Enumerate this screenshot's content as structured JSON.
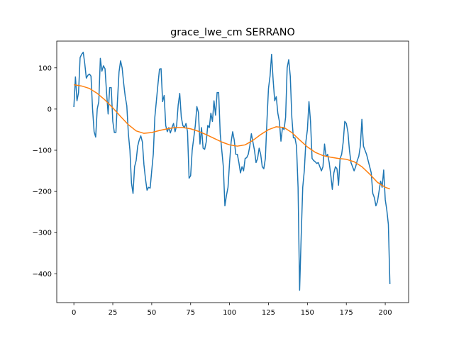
{
  "chart_data": {
    "type": "line",
    "title": "grace_lwe_cm SERRANO",
    "xlabel": "",
    "ylabel": "",
    "xlim": [
      -11,
      215
    ],
    "ylim": [
      -470,
      165
    ],
    "xticks": [
      0,
      25,
      50,
      75,
      100,
      125,
      150,
      175,
      200
    ],
    "yticks": [
      100,
      0,
      -100,
      -200,
      -300,
      -400
    ],
    "grid": false,
    "legend": "none",
    "series": [
      {
        "color": "#1f77b4",
        "points": [
          [
            0,
            5
          ],
          [
            1,
            78
          ],
          [
            2,
            20
          ],
          [
            3,
            40
          ],
          [
            4,
            125
          ],
          [
            5,
            133
          ],
          [
            6,
            138
          ],
          [
            7,
            110
          ],
          [
            8,
            75
          ],
          [
            9,
            82
          ],
          [
            10,
            85
          ],
          [
            11,
            80
          ],
          [
            12,
            0
          ],
          [
            13,
            -55
          ],
          [
            14,
            -68
          ],
          [
            15,
            0
          ],
          [
            16,
            18
          ],
          [
            17,
            123
          ],
          [
            18,
            92
          ],
          [
            19,
            105
          ],
          [
            20,
            98
          ],
          [
            21,
            40
          ],
          [
            22,
            -12
          ],
          [
            23,
            52
          ],
          [
            24,
            52
          ],
          [
            25,
            -30
          ],
          [
            26,
            -57
          ],
          [
            27,
            -57
          ],
          [
            28,
            20
          ],
          [
            29,
            90
          ],
          [
            30,
            117
          ],
          [
            31,
            100
          ],
          [
            32,
            62
          ],
          [
            33,
            30
          ],
          [
            34,
            8
          ],
          [
            35,
            -60
          ],
          [
            36,
            -100
          ],
          [
            37,
            -180
          ],
          [
            38,
            -205
          ],
          [
            39,
            -140
          ],
          [
            40,
            -125
          ],
          [
            41,
            -90
          ],
          [
            42,
            -75
          ],
          [
            43,
            -65
          ],
          [
            44,
            -80
          ],
          [
            45,
            -135
          ],
          [
            46,
            -170
          ],
          [
            47,
            -197
          ],
          [
            48,
            -190
          ],
          [
            49,
            -192
          ],
          [
            50,
            -150
          ],
          [
            51,
            -110
          ],
          [
            52,
            -20
          ],
          [
            53,
            20
          ],
          [
            54,
            60
          ],
          [
            55,
            97
          ],
          [
            56,
            98
          ],
          [
            57,
            18
          ],
          [
            58,
            33
          ],
          [
            59,
            -40
          ],
          [
            60,
            -55
          ],
          [
            61,
            -45
          ],
          [
            62,
            -58
          ],
          [
            63,
            -45
          ],
          [
            64,
            -35
          ],
          [
            65,
            -55
          ],
          [
            66,
            -40
          ],
          [
            67,
            10
          ],
          [
            68,
            38
          ],
          [
            69,
            -20
          ],
          [
            70,
            -40
          ],
          [
            71,
            -45
          ],
          [
            72,
            -35
          ],
          [
            73,
            -55
          ],
          [
            74,
            -168
          ],
          [
            75,
            -162
          ],
          [
            76,
            -100
          ],
          [
            77,
            -70
          ],
          [
            78,
            -40
          ],
          [
            79,
            6
          ],
          [
            80,
            -8
          ],
          [
            81,
            -85
          ],
          [
            82,
            -45
          ],
          [
            83,
            -95
          ],
          [
            84,
            -98
          ],
          [
            85,
            -80
          ],
          [
            86,
            -40
          ],
          [
            87,
            -45
          ],
          [
            88,
            -10
          ],
          [
            89,
            -30
          ],
          [
            90,
            20
          ],
          [
            91,
            -15
          ],
          [
            92,
            40
          ],
          [
            93,
            40
          ],
          [
            94,
            -60
          ],
          [
            95,
            -100
          ],
          [
            96,
            -140
          ],
          [
            97,
            -235
          ],
          [
            98,
            -210
          ],
          [
            99,
            -190
          ],
          [
            100,
            -130
          ],
          [
            101,
            -80
          ],
          [
            102,
            -55
          ],
          [
            103,
            -75
          ],
          [
            104,
            -110
          ],
          [
            105,
            -110
          ],
          [
            106,
            -130
          ],
          [
            107,
            -155
          ],
          [
            108,
            -140
          ],
          [
            109,
            -150
          ],
          [
            110,
            -120
          ],
          [
            111,
            -118
          ],
          [
            112,
            -110
          ],
          [
            113,
            -90
          ],
          [
            114,
            -60
          ],
          [
            115,
            -80
          ],
          [
            116,
            -100
          ],
          [
            117,
            -130
          ],
          [
            118,
            -120
          ],
          [
            119,
            -95
          ],
          [
            120,
            -110
          ],
          [
            121,
            -140
          ],
          [
            122,
            -145
          ],
          [
            123,
            -120
          ],
          [
            124,
            -30
          ],
          [
            125,
            50
          ],
          [
            126,
            80
          ],
          [
            127,
            133
          ],
          [
            128,
            70
          ],
          [
            129,
            20
          ],
          [
            130,
            30
          ],
          [
            131,
            -10
          ],
          [
            132,
            -30
          ],
          [
            133,
            -78
          ],
          [
            134,
            -45
          ],
          [
            135,
            -50
          ],
          [
            136,
            -20
          ],
          [
            137,
            100
          ],
          [
            138,
            120
          ],
          [
            139,
            80
          ],
          [
            140,
            -20
          ],
          [
            141,
            -70
          ],
          [
            142,
            -70
          ],
          [
            143,
            -90
          ],
          [
            144,
            -190
          ],
          [
            145,
            -440
          ],
          [
            146,
            -310
          ],
          [
            147,
            -190
          ],
          [
            148,
            -150
          ],
          [
            149,
            -80
          ],
          [
            150,
            -50
          ],
          [
            151,
            18
          ],
          [
            152,
            -30
          ],
          [
            153,
            -120
          ],
          [
            154,
            -125
          ],
          [
            155,
            -128
          ],
          [
            156,
            -132
          ],
          [
            157,
            -130
          ],
          [
            158,
            -140
          ],
          [
            159,
            -150
          ],
          [
            160,
            -140
          ],
          [
            161,
            -85
          ],
          [
            162,
            -115
          ],
          [
            163,
            -110
          ],
          [
            164,
            -130
          ],
          [
            165,
            -160
          ],
          [
            166,
            -195
          ],
          [
            167,
            -155
          ],
          [
            168,
            -140
          ],
          [
            169,
            -145
          ],
          [
            170,
            -185
          ],
          [
            171,
            -120
          ],
          [
            172,
            -110
          ],
          [
            173,
            -80
          ],
          [
            174,
            -30
          ],
          [
            175,
            -35
          ],
          [
            176,
            -55
          ],
          [
            177,
            -100
          ],
          [
            178,
            -130
          ],
          [
            179,
            -140
          ],
          [
            180,
            -150
          ],
          [
            181,
            -140
          ],
          [
            182,
            -125
          ],
          [
            183,
            -115
          ],
          [
            184,
            -90
          ],
          [
            185,
            -25
          ],
          [
            186,
            -90
          ],
          [
            187,
            -100
          ],
          [
            188,
            -110
          ],
          [
            189,
            -125
          ],
          [
            190,
            -140
          ],
          [
            191,
            -155
          ],
          [
            192,
            -205
          ],
          [
            193,
            -215
          ],
          [
            194,
            -235
          ],
          [
            195,
            -225
          ],
          [
            196,
            -200
          ],
          [
            197,
            -175
          ],
          [
            198,
            -190
          ],
          [
            199,
            -148
          ],
          [
            200,
            -220
          ],
          [
            201,
            -245
          ],
          [
            202,
            -280
          ],
          [
            203,
            -425
          ]
        ]
      },
      {
        "color": "#ff7f0e",
        "points": [
          [
            0,
            59
          ],
          [
            5,
            56
          ],
          [
            10,
            50
          ],
          [
            15,
            38
          ],
          [
            20,
            22
          ],
          [
            25,
            3
          ],
          [
            30,
            -18
          ],
          [
            35,
            -38
          ],
          [
            40,
            -53
          ],
          [
            45,
            -59
          ],
          [
            50,
            -57
          ],
          [
            55,
            -52
          ],
          [
            60,
            -48
          ],
          [
            65,
            -45
          ],
          [
            70,
            -45
          ],
          [
            75,
            -48
          ],
          [
            80,
            -54
          ],
          [
            85,
            -62
          ],
          [
            90,
            -71
          ],
          [
            95,
            -80
          ],
          [
            100,
            -87
          ],
          [
            105,
            -90
          ],
          [
            110,
            -87
          ],
          [
            115,
            -76
          ],
          [
            120,
            -62
          ],
          [
            125,
            -50
          ],
          [
            130,
            -43
          ],
          [
            135,
            -45
          ],
          [
            140,
            -57
          ],
          [
            145,
            -75
          ],
          [
            150,
            -92
          ],
          [
            155,
            -105
          ],
          [
            160,
            -113
          ],
          [
            165,
            -117
          ],
          [
            170,
            -120
          ],
          [
            175,
            -122
          ],
          [
            180,
            -128
          ],
          [
            185,
            -140
          ],
          [
            190,
            -158
          ],
          [
            195,
            -178
          ],
          [
            200,
            -190
          ],
          [
            203,
            -194
          ]
        ]
      }
    ]
  }
}
